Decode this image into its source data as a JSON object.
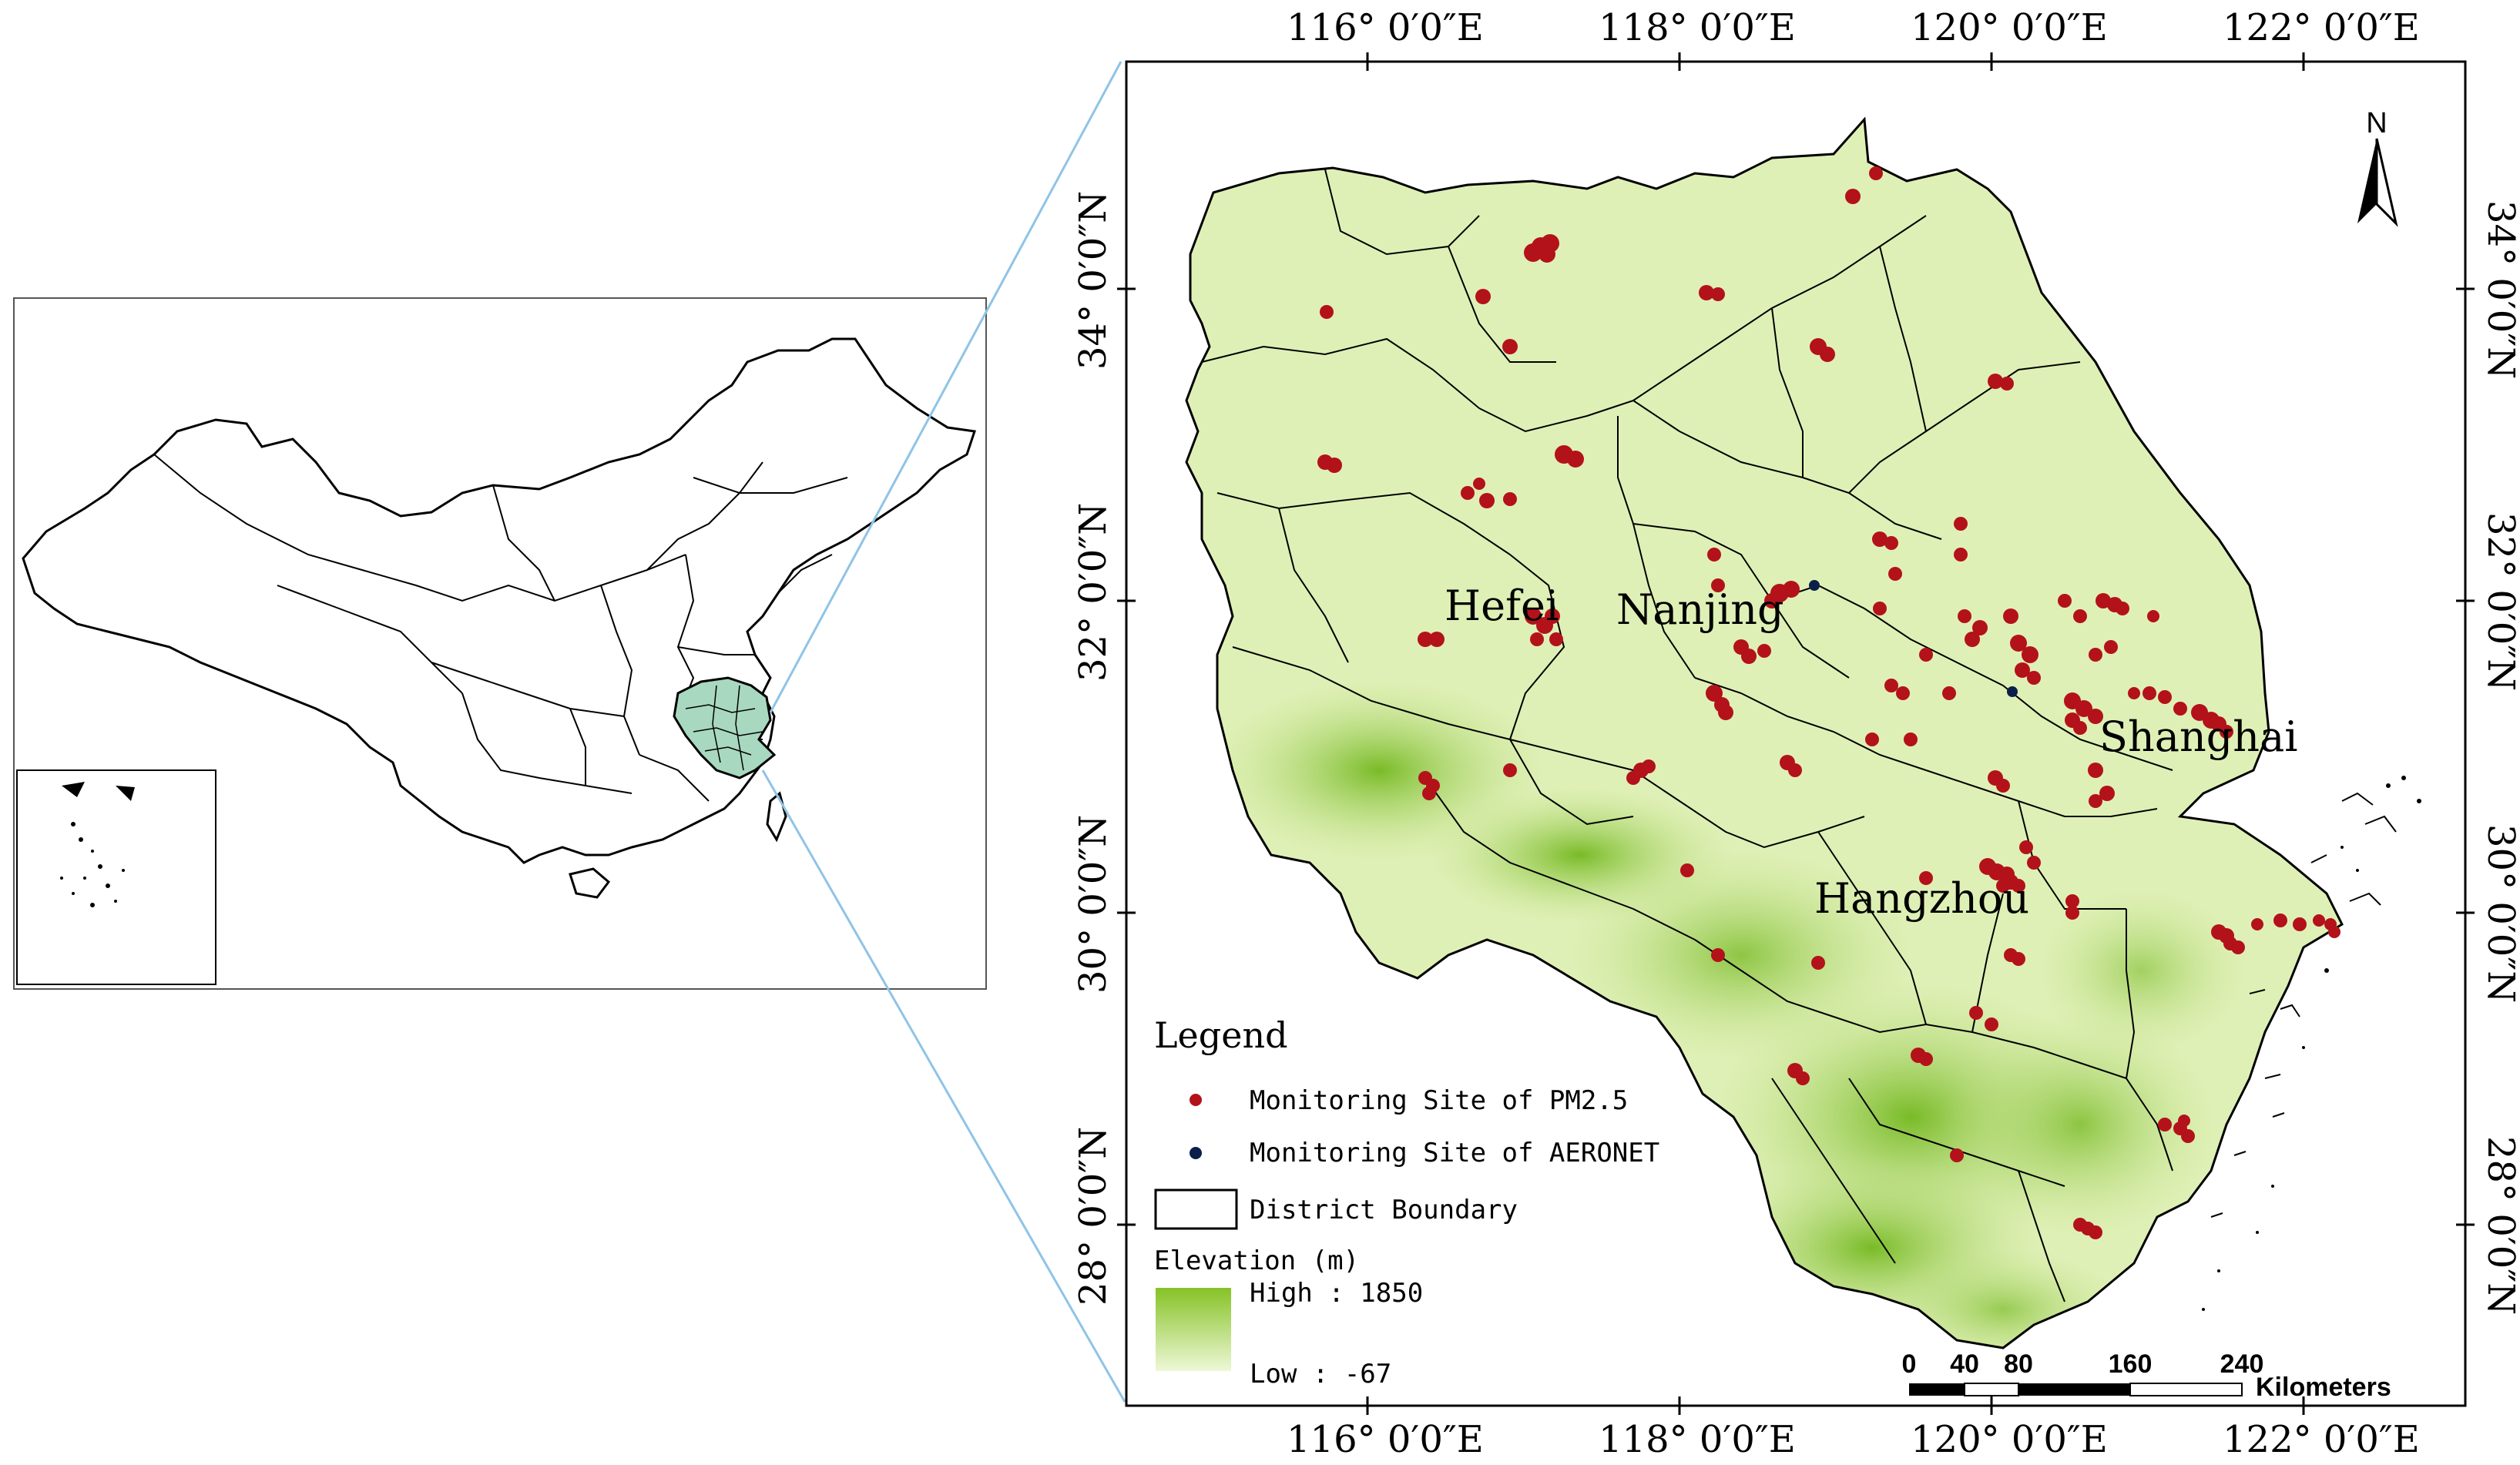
{
  "top_lon_labels": [
    "116° 0′0″E",
    "118° 0′0″E",
    "120° 0′0″E",
    "122° 0′0″E"
  ],
  "bottom_lon_labels": [
    "116° 0′0″E",
    "118° 0′0″E",
    "120° 0′0″E",
    "122° 0′0″E"
  ],
  "left_lat_labels": [
    "34° 0′0″N",
    "32° 0′0″N",
    "30° 0′0″N",
    "28° 0′0″N"
  ],
  "right_lat_labels": [
    "34° 0′0″N",
    "32° 0′0″N",
    "30° 0′0″N",
    "28° 0′0″N"
  ],
  "cities": [
    "Hefei",
    "Nanjing",
    "Shanghai",
    "Hangzhou"
  ],
  "north_label": "N",
  "legend": {
    "title": "Legend",
    "pm25": "Monitoring Site of PM2.5",
    "aeronet": "Monitoring Site of AERONET",
    "boundary": "District Boundary",
    "elevation_title": "Elevation (m)",
    "high": "High : 1850",
    "low": "Low : -67"
  },
  "scale_bar": {
    "ticks": [
      "0",
      "40",
      "80",
      "160",
      "240"
    ],
    "unit": "Kilometers"
  },
  "colors": {
    "lowland": "#e6f3c4",
    "highland": "#7fbf2a",
    "pm25": "#b3121a",
    "aeronet": "#0b1f4a",
    "inset_region": "#a8d8c0",
    "leader": "#8fc4e6"
  }
}
